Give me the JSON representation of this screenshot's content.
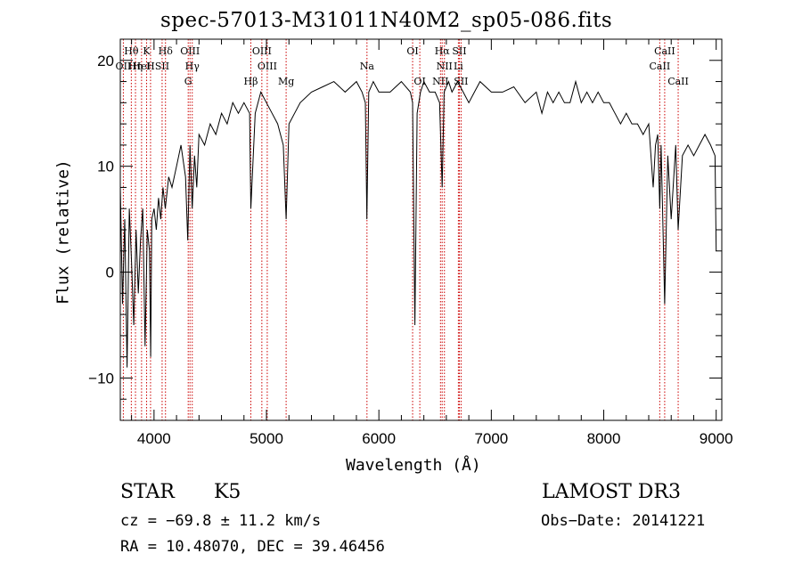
{
  "chart_data": {
    "type": "line",
    "title": "spec-57013-M31011N40M2_sp05-086.fits",
    "xlabel": "Wavelength (Å)",
    "ylabel": "Flux (relative)",
    "xlim": [
      3700,
      9050
    ],
    "ylim": [
      -14,
      22
    ],
    "x_ticks": [
      4000,
      5000,
      6000,
      7000,
      8000,
      9000
    ],
    "y_ticks": [
      -10,
      0,
      10,
      20
    ],
    "series": [
      {
        "name": "flux",
        "x": [
          3700,
          3720,
          3740,
          3760,
          3780,
          3800,
          3820,
          3840,
          3860,
          3880,
          3900,
          3920,
          3940,
          3960,
          3970,
          3980,
          4000,
          4020,
          4040,
          4060,
          4080,
          4100,
          4130,
          4160,
          4200,
          4240,
          4280,
          4300,
          4320,
          4340,
          4360,
          4380,
          4400,
          4450,
          4500,
          4550,
          4600,
          4650,
          4700,
          4750,
          4800,
          4850,
          4861,
          4900,
          4950,
          5000,
          5050,
          5100,
          5150,
          5175,
          5200,
          5250,
          5300,
          5400,
          5500,
          5600,
          5700,
          5800,
          5850,
          5880,
          5893,
          5910,
          5950,
          6000,
          6100,
          6200,
          6280,
          6300,
          6320,
          6340,
          6370,
          6400,
          6450,
          6500,
          6540,
          6563,
          6580,
          6620,
          6650,
          6700,
          6750,
          6800,
          6850,
          6900,
          7000,
          7100,
          7200,
          7300,
          7400,
          7450,
          7500,
          7550,
          7600,
          7650,
          7700,
          7750,
          7800,
          7850,
          7900,
          7950,
          8000,
          8050,
          8100,
          8150,
          8200,
          8250,
          8300,
          8350,
          8400,
          8440,
          8460,
          8480,
          8498,
          8510,
          8542,
          8570,
          8600,
          8640,
          8662,
          8700,
          8750,
          8800,
          8850,
          8900,
          8950,
          8990,
          9000
        ],
        "y": [
          8,
          -3,
          5,
          -9,
          6,
          1,
          -5,
          4,
          -2,
          3,
          6,
          -7,
          4,
          2,
          -8,
          5,
          6,
          4,
          7,
          5,
          8,
          6,
          9,
          8,
          10,
          12,
          9,
          3,
          12,
          6,
          11,
          8,
          13,
          12,
          14,
          13,
          15,
          14,
          16,
          15,
          16,
          15,
          6,
          15,
          17,
          16,
          15,
          14,
          12,
          5,
          14,
          15,
          16,
          17,
          17.5,
          18,
          17,
          18,
          17,
          16,
          5,
          17,
          18,
          17,
          17,
          18,
          17,
          16,
          -5,
          15,
          17,
          18,
          17,
          17,
          16,
          8,
          17,
          18,
          17,
          18,
          17,
          16,
          17,
          18,
          17,
          17,
          17.5,
          16,
          17,
          15,
          17,
          16,
          17,
          16,
          16,
          18,
          16,
          17,
          16,
          17,
          16,
          16,
          15,
          14,
          15,
          14,
          14,
          13,
          14,
          8,
          12,
          13,
          6,
          12,
          -3,
          11,
          5,
          12,
          4,
          11,
          12,
          11,
          12,
          13,
          12,
          11,
          2
        ]
      }
    ],
    "lines": [
      {
        "name": "OII",
        "wavelength": 3727,
        "label_row": 2
      },
      {
        "name": "Hθ",
        "wavelength": 3798,
        "label_row": 1
      },
      {
        "name": "Hη",
        "wavelength": 3835,
        "label_row": 2
      },
      {
        "name": "HeI",
        "wavelength": 3889,
        "label_row": 2
      },
      {
        "name": "K",
        "wavelength": 3934,
        "label_row": 1
      },
      {
        "name": "H",
        "wavelength": 3969,
        "label_row": 2
      },
      {
        "name": "SII",
        "wavelength": 4072,
        "label_row": 2
      },
      {
        "name": "Hδ",
        "wavelength": 4102,
        "label_row": 1
      },
      {
        "name": "G",
        "wavelength": 4304,
        "label_row": 3
      },
      {
        "name": "OIII",
        "wavelength": 4320,
        "label_row": 1
      },
      {
        "name": "Hγ",
        "wavelength": 4340,
        "label_row": 2
      },
      {
        "name": "Hβ",
        "wavelength": 4861,
        "label_row": 3
      },
      {
        "name": "OIII",
        "wavelength": 4959,
        "label_row": 1
      },
      {
        "name": "OIII",
        "wavelength": 5007,
        "label_row": 2
      },
      {
        "name": "Mg",
        "wavelength": 5175,
        "label_row": 3
      },
      {
        "name": "Na",
        "wavelength": 5894,
        "label_row": 2
      },
      {
        "name": "OI",
        "wavelength": 6300,
        "label_row": 1
      },
      {
        "name": "OI",
        "wavelength": 6364,
        "label_row": 3
      },
      {
        "name": "NII",
        "wavelength": 6548,
        "label_row": 3
      },
      {
        "name": "Hα",
        "wavelength": 6563,
        "label_row": 1
      },
      {
        "name": "NII",
        "wavelength": 6583,
        "label_row": 2
      },
      {
        "name": "Li",
        "wavelength": 6707,
        "label_row": 2
      },
      {
        "name": "SII",
        "wavelength": 6716,
        "label_row": 1
      },
      {
        "name": "SII",
        "wavelength": 6731,
        "label_row": 3
      },
      {
        "name": "CaII",
        "wavelength": 8498,
        "label_row": 2
      },
      {
        "name": "CaII",
        "wavelength": 8542,
        "label_row": 1
      },
      {
        "name": "CaII",
        "wavelength": 8662,
        "label_row": 3
      }
    ]
  },
  "info": {
    "class": "STAR",
    "subclass": "K5",
    "survey": "LAMOST DR3",
    "cz": "cz = −69.8 ± 11.2 km/s",
    "obs_date": "Obs−Date: 20141221",
    "coords": "RA =  10.48070, DEC =  39.46456"
  },
  "colors": {
    "line": "#000000",
    "marker": "#cc0000"
  }
}
